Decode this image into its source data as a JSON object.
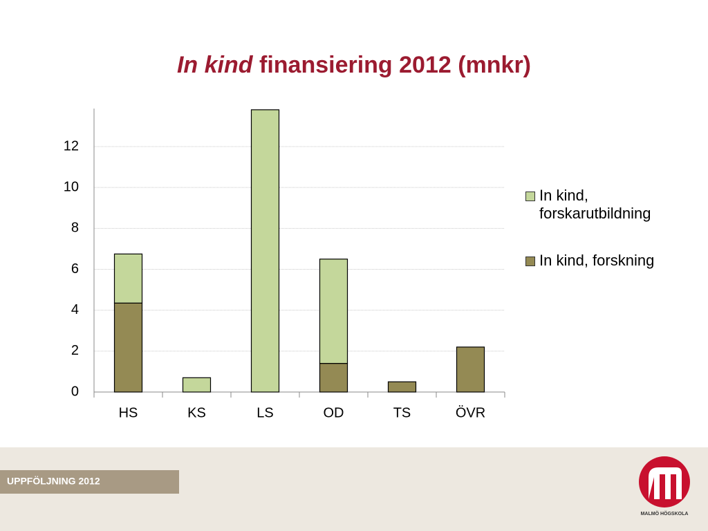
{
  "title_italic": "In kind",
  "title_rest": "finansiering 2012 (mnkr)",
  "footer_label": "UPPFÖLJNING 2012",
  "logo_text": "MALMÖ HÖGSKOLA",
  "chart_data": {
    "type": "stacked_bar",
    "categories": [
      "HS",
      "KS",
      "LS",
      "OD",
      "TS",
      "ÖVR"
    ],
    "series": [
      {
        "name": "In kind, forskning",
        "color": "#948a54",
        "values": [
          4.35,
          0,
          0,
          1.4,
          0.5,
          2.2
        ]
      },
      {
        "name": "In kind, forskarutbildning",
        "color": "#c4d79b",
        "values": [
          2.4,
          0.7,
          13.8,
          5.1,
          0,
          0
        ]
      }
    ],
    "ylim": [
      0,
      13.86
    ],
    "yticks": [
      0,
      2,
      4,
      6,
      8,
      10,
      12
    ],
    "grid": true,
    "legend": "right"
  }
}
